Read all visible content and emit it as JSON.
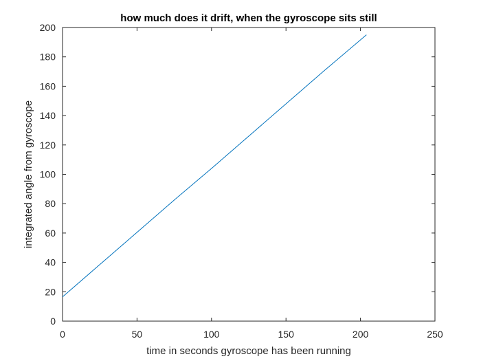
{
  "chart_data": {
    "type": "line",
    "title": "how much does it drift, when the gyroscope sits still",
    "xlabel": "time in seconds gyroscope has been running",
    "ylabel": "integrated angle from gyroscope",
    "xlim": [
      0,
      250
    ],
    "ylim": [
      0,
      200
    ],
    "xticks": [
      0,
      50,
      100,
      150,
      200,
      250
    ],
    "yticks": [
      0,
      20,
      40,
      60,
      80,
      100,
      120,
      140,
      160,
      180,
      200
    ],
    "grid": false,
    "series": [
      {
        "color": "#0072BD",
        "x": [
          0,
          25,
          50,
          75,
          100,
          125,
          150,
          175,
          204
        ],
        "y": [
          16.5,
          38.5,
          60.5,
          82.5,
          104.0,
          126.0,
          148.0,
          170.0,
          195.0
        ]
      }
    ]
  },
  "colors": {
    "axis": "#262626",
    "line": "#0072BD"
  }
}
